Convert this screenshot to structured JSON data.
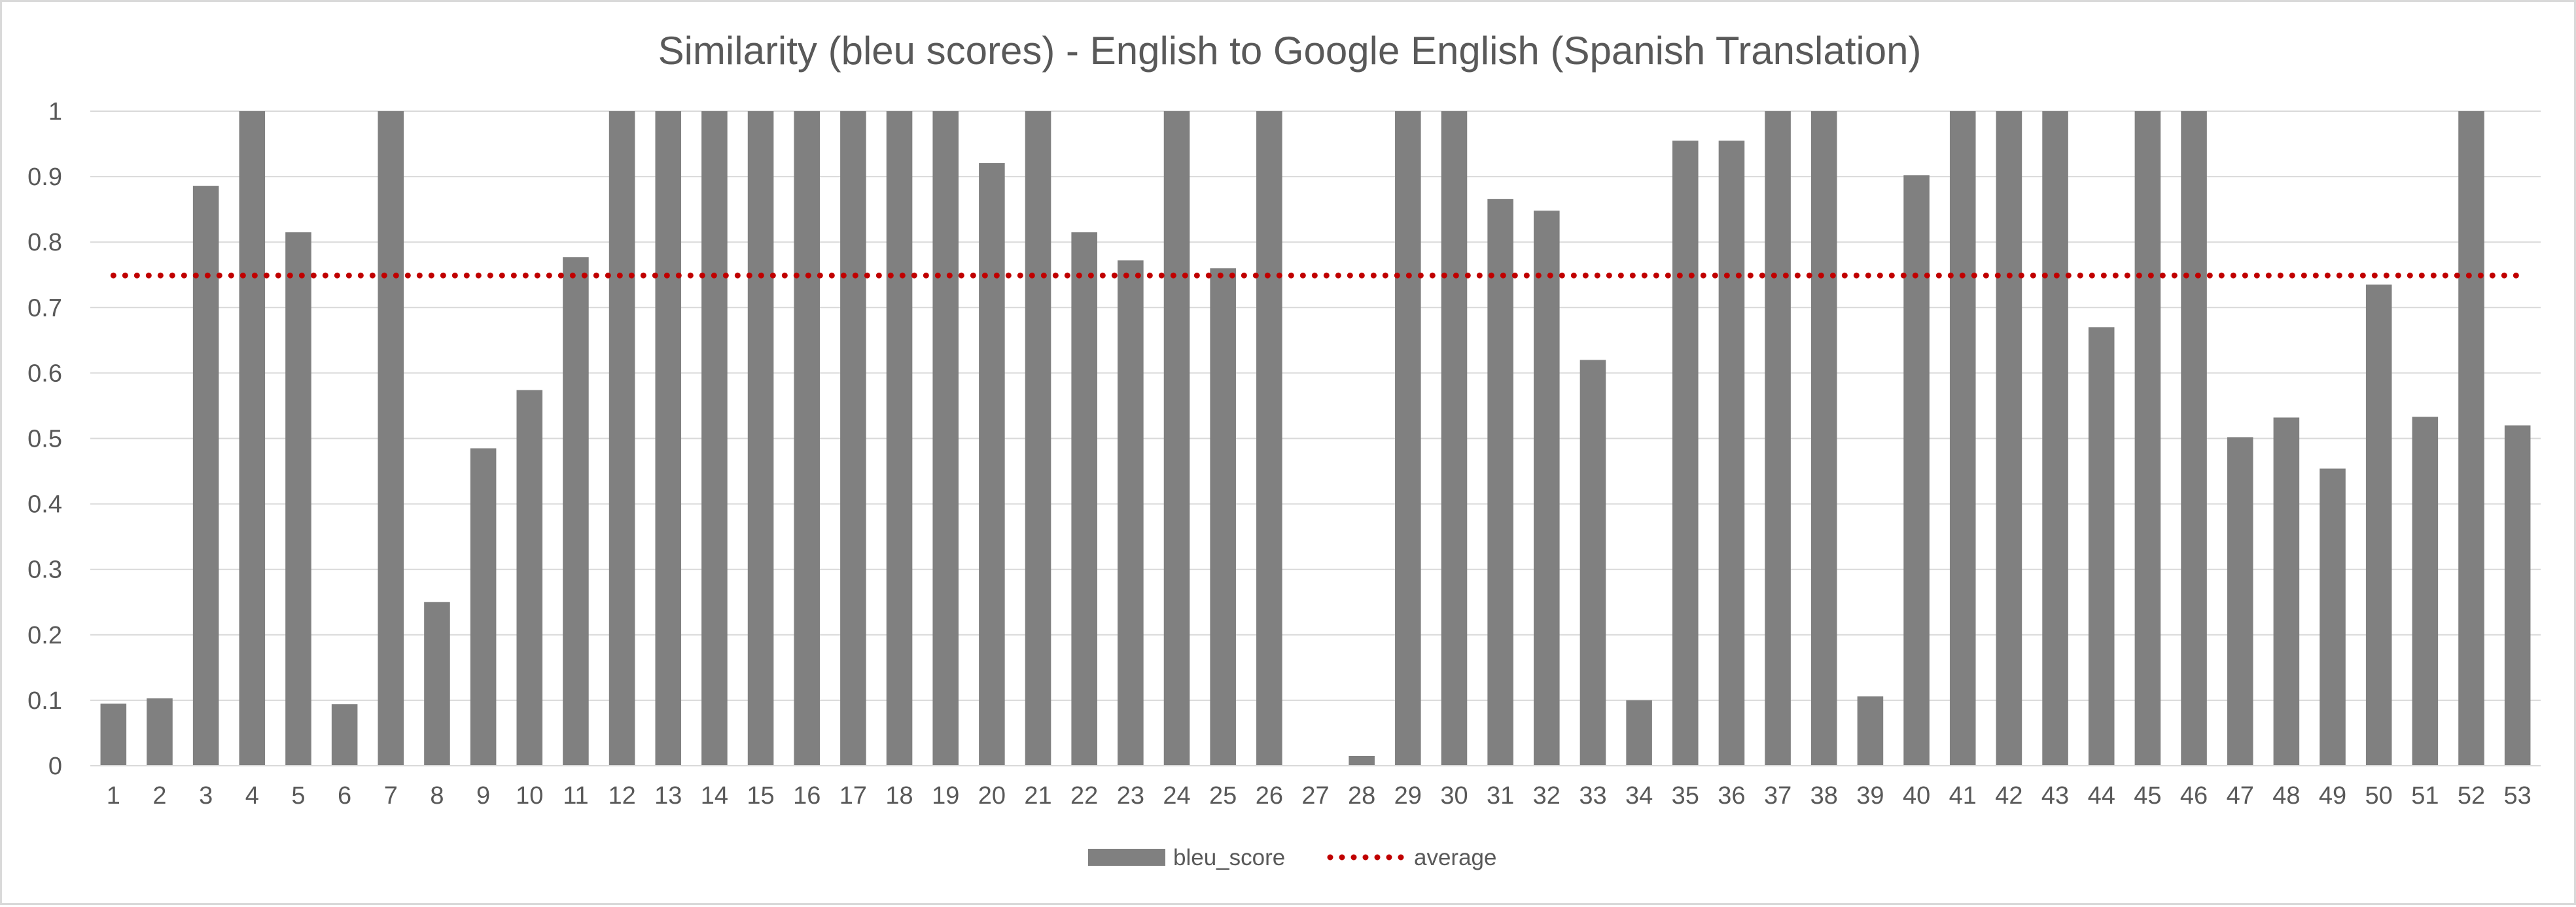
{
  "chart_data": {
    "type": "bar",
    "title": "Similarity (bleu scores) - English to Google English (Spanish Translation)",
    "categories": [
      "1",
      "2",
      "3",
      "4",
      "5",
      "6",
      "7",
      "8",
      "9",
      "10",
      "11",
      "12",
      "13",
      "14",
      "15",
      "16",
      "17",
      "18",
      "19",
      "20",
      "21",
      "22",
      "23",
      "24",
      "25",
      "26",
      "27",
      "28",
      "29",
      "30",
      "31",
      "32",
      "33",
      "34",
      "35",
      "36",
      "37",
      "38",
      "39",
      "40",
      "41",
      "42",
      "43",
      "44",
      "45",
      "46",
      "47",
      "48",
      "49",
      "50",
      "51",
      "52",
      "53"
    ],
    "series": [
      {
        "name": "bleu_score",
        "color": "#808080",
        "values": [
          0.095,
          0.103,
          0.886,
          1,
          0.815,
          0.094,
          1,
          0.25,
          0.485,
          0.574,
          0.777,
          1,
          1,
          1,
          1,
          1,
          1,
          1,
          1,
          0.921,
          1,
          0.815,
          0.772,
          1,
          0.76,
          1,
          0,
          0.015,
          1,
          1,
          0.866,
          0.848,
          0.62,
          0.1,
          0.955,
          0.955,
          1,
          1,
          0.106,
          0.902,
          1,
          1,
          1,
          0.67,
          1,
          1,
          0.502,
          0.532,
          0.454,
          0.735,
          0.533,
          1,
          0.52
        ]
      }
    ],
    "average": {
      "name": "average",
      "value": 0.749,
      "color": "#c00000",
      "style": "dotted"
    },
    "ylim": [
      0,
      1
    ],
    "yticks": [
      "0",
      "0.1",
      "0.2",
      "0.3",
      "0.4",
      "0.5",
      "0.6",
      "0.7",
      "0.8",
      "0.9",
      "1"
    ],
    "grid": true,
    "legend_position": "bottom"
  }
}
